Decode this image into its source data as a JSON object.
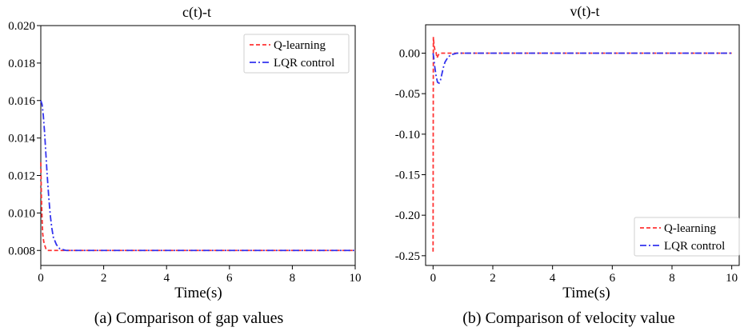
{
  "captions": {
    "a": "(a) Comparison of gap values",
    "b": "(b) Comparison of velocity value"
  },
  "chart_data": [
    {
      "type": "line",
      "title": "c(t)-t",
      "xlabel": "Time(s)",
      "ylabel": "",
      "xlim": [
        0,
        10
      ],
      "ylim": [
        0.0072,
        0.02
      ],
      "xticks": [
        0,
        2,
        4,
        6,
        8,
        10
      ],
      "yticks": [
        0.008,
        0.01,
        0.012,
        0.014,
        0.016,
        0.018,
        0.02
      ],
      "ytick_labels": [
        "0.008",
        "0.010",
        "0.012",
        "0.014",
        "0.016",
        "0.018",
        "0.020"
      ],
      "grid": false,
      "legend": "top-right",
      "series": [
        {
          "name": "Q-learning",
          "color": "#ff3333",
          "style": "dashed",
          "x": [
            0,
            0.02,
            0.04,
            0.06,
            0.09,
            0.12,
            0.16,
            0.2,
            0.25,
            0.3,
            0.5,
            1,
            2,
            4,
            6,
            8,
            10
          ],
          "y": [
            0.0127,
            0.0108,
            0.0097,
            0.0089,
            0.0085,
            0.0083,
            0.0081,
            0.008,
            0.008,
            0.008,
            0.008,
            0.008,
            0.008,
            0.008,
            0.008,
            0.008,
            0.008
          ]
        },
        {
          "name": "LQR control",
          "color": "#3333ee",
          "style": "dashdot",
          "x": [
            0,
            0.04,
            0.08,
            0.12,
            0.16,
            0.2,
            0.25,
            0.3,
            0.35,
            0.4,
            0.5,
            0.6,
            0.7,
            0.8,
            1.0,
            1.5,
            2,
            4,
            6,
            8,
            10
          ],
          "y": [
            0.016,
            0.0158,
            0.0152,
            0.0143,
            0.0132,
            0.0121,
            0.0109,
            0.0099,
            0.0092,
            0.0087,
            0.0083,
            0.0081,
            0.00805,
            0.008,
            0.008,
            0.008,
            0.008,
            0.008,
            0.008,
            0.008,
            0.008
          ]
        }
      ]
    },
    {
      "type": "line",
      "title": "v(t)-t",
      "xlabel": "Time(s)",
      "ylabel": "",
      "xlim": [
        -0.25,
        10.25
      ],
      "ylim": [
        -0.262,
        0.035
      ],
      "xticks": [
        0,
        2,
        4,
        6,
        8,
        10
      ],
      "yticks": [
        0.0,
        -0.05,
        -0.1,
        -0.15,
        -0.2,
        -0.25
      ],
      "ytick_labels": [
        "0.00",
        "-0.05",
        "-0.10",
        "-0.15",
        "-0.20",
        "-0.25"
      ],
      "grid": false,
      "legend": "bottom-right",
      "series": [
        {
          "name": "Q-learning",
          "color": "#ff3333",
          "style": "dashed",
          "x": [
            0,
            0.005,
            0.01,
            0.02,
            0.035,
            0.05,
            0.07,
            0.1,
            0.13,
            0.18,
            0.25,
            0.35,
            0.5,
            1,
            2,
            4,
            6,
            8,
            10
          ],
          "y": [
            -0.245,
            -0.1,
            0.02,
            0.015,
            0.01,
            0.006,
            0.003,
            0.001,
            -0.006,
            -0.002,
            0.0,
            0.0,
            0.0,
            0.0,
            0.0,
            0.0,
            0.0,
            0.0,
            0.0
          ]
        },
        {
          "name": "LQR control",
          "color": "#3333ee",
          "style": "dashdot",
          "x": [
            0,
            0.02,
            0.05,
            0.1,
            0.15,
            0.2,
            0.25,
            0.3,
            0.35,
            0.4,
            0.5,
            0.6,
            0.7,
            0.8,
            1.0,
            2,
            4,
            6,
            8,
            10
          ],
          "y": [
            0.0,
            -0.005,
            -0.015,
            -0.028,
            -0.036,
            -0.037,
            -0.033,
            -0.025,
            -0.017,
            -0.011,
            -0.005,
            -0.002,
            -0.001,
            0.0,
            0.0,
            0.0,
            0.0,
            0.0,
            0.0,
            0.0
          ]
        }
      ]
    }
  ]
}
